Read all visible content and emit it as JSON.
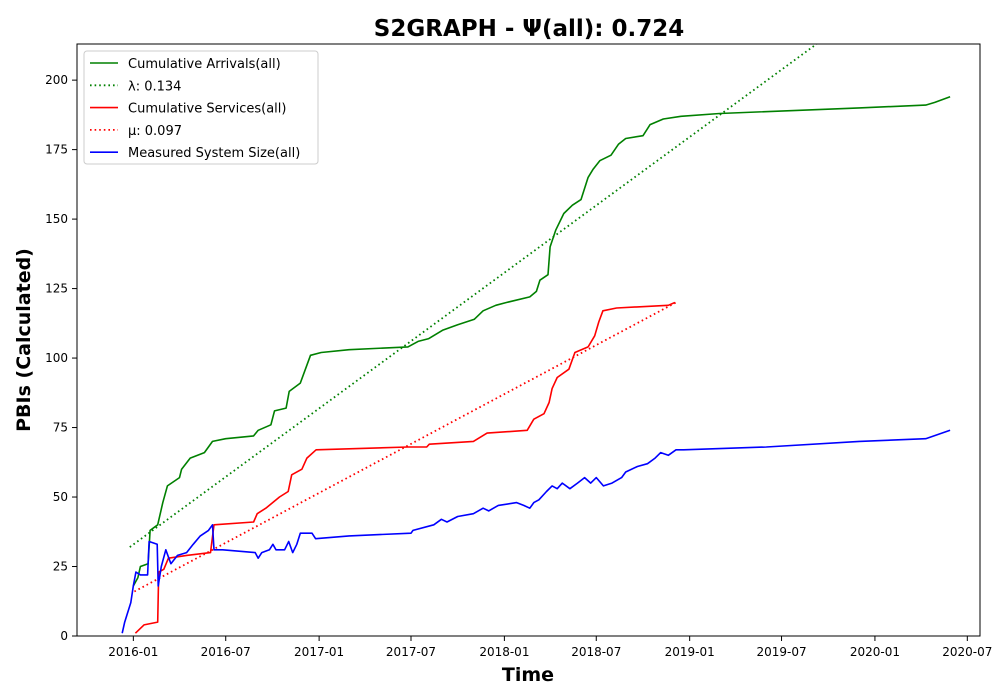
{
  "chart_data": {
    "type": "line",
    "title": "S2GRAPH -  Ψ(all): 0.724",
    "xlabel": "Time",
    "ylabel": "PBIs (Calculated)",
    "xlim": [
      "2015-09-12",
      "2020-07-26"
    ],
    "ylim": [
      0,
      213
    ],
    "x_ticks": [
      "2016-01",
      "2016-07",
      "2017-01",
      "2017-07",
      "2018-01",
      "2018-07",
      "2019-01",
      "2019-07",
      "2020-01",
      "2020-07"
    ],
    "y_ticks": [
      0,
      25,
      50,
      75,
      100,
      125,
      150,
      175,
      200
    ],
    "grid": false,
    "legend_position": "top-left",
    "series": [
      {
        "name": "Cumulative Arrivals(all)",
        "color": "#008000",
        "style": "solid",
        "points": [
          [
            "2016-01-01",
            18
          ],
          [
            "2016-01-10",
            21
          ],
          [
            "2016-01-15",
            25
          ],
          [
            "2016-01-30",
            26
          ],
          [
            "2016-02-03",
            38
          ],
          [
            "2016-02-18",
            40
          ],
          [
            "2016-02-28",
            48
          ],
          [
            "2016-03-08",
            54
          ],
          [
            "2016-04-01",
            57
          ],
          [
            "2016-04-05",
            60
          ],
          [
            "2016-04-22",
            64
          ],
          [
            "2016-05-20",
            66
          ],
          [
            "2016-06-05",
            70
          ],
          [
            "2016-07-01",
            71
          ],
          [
            "2016-08-25",
            72
          ],
          [
            "2016-09-03",
            74
          ],
          [
            "2016-09-28",
            76
          ],
          [
            "2016-10-05",
            81
          ],
          [
            "2016-10-28",
            82
          ],
          [
            "2016-11-03",
            88
          ],
          [
            "2016-11-25",
            91
          ],
          [
            "2016-12-15",
            101
          ],
          [
            "2017-01-05",
            102
          ],
          [
            "2017-03-01",
            103
          ],
          [
            "2017-06-25",
            104
          ],
          [
            "2017-07-15",
            106
          ],
          [
            "2017-08-05",
            107
          ],
          [
            "2017-09-01",
            110
          ],
          [
            "2017-10-01",
            112
          ],
          [
            "2017-11-03",
            114
          ],
          [
            "2017-11-20",
            117
          ],
          [
            "2017-12-15",
            119
          ],
          [
            "2018-01-05",
            120
          ],
          [
            "2018-02-20",
            122
          ],
          [
            "2018-03-05",
            124
          ],
          [
            "2018-03-12",
            128
          ],
          [
            "2018-03-28",
            130
          ],
          [
            "2018-04-01",
            140
          ],
          [
            "2018-04-12",
            146
          ],
          [
            "2018-04-28",
            152
          ],
          [
            "2018-05-15",
            155
          ],
          [
            "2018-06-01",
            157
          ],
          [
            "2018-06-15",
            165
          ],
          [
            "2018-06-25",
            168
          ],
          [
            "2018-07-08",
            171
          ],
          [
            "2018-07-30",
            173
          ],
          [
            "2018-08-14",
            177
          ],
          [
            "2018-08-28",
            179
          ],
          [
            "2018-10-01",
            180
          ],
          [
            "2018-10-15",
            184
          ],
          [
            "2018-11-10",
            186
          ],
          [
            "2018-12-15",
            187
          ],
          [
            "2019-03-01",
            188
          ],
          [
            "2019-12-01",
            190
          ],
          [
            "2020-04-10",
            191
          ],
          [
            "2020-04-28",
            192
          ],
          [
            "2020-05-28",
            194
          ]
        ]
      },
      {
        "name": "λ: 0.134",
        "color": "#008000",
        "style": "dotted",
        "points": [
          [
            "2015-12-25",
            32
          ],
          [
            "2019-09-08",
            213
          ]
        ]
      },
      {
        "name": "Cumulative Services(all)",
        "color": "#ff0000",
        "style": "solid",
        "points": [
          [
            "2016-01-05",
            1
          ],
          [
            "2016-01-22",
            4
          ],
          [
            "2016-02-18",
            5
          ],
          [
            "2016-02-20",
            23
          ],
          [
            "2016-03-01",
            24
          ],
          [
            "2016-03-10",
            28
          ],
          [
            "2016-04-15",
            29
          ],
          [
            "2016-06-01",
            30
          ],
          [
            "2016-06-08",
            40
          ],
          [
            "2016-08-25",
            41
          ],
          [
            "2016-09-01",
            44
          ],
          [
            "2016-09-18",
            46
          ],
          [
            "2016-10-15",
            50
          ],
          [
            "2016-11-01",
            52
          ],
          [
            "2016-11-08",
            58
          ],
          [
            "2016-11-28",
            60
          ],
          [
            "2016-12-08",
            64
          ],
          [
            "2016-12-26",
            67
          ],
          [
            "2017-06-25",
            68
          ],
          [
            "2017-08-01",
            68
          ],
          [
            "2017-08-06",
            69
          ],
          [
            "2017-11-01",
            70
          ],
          [
            "2017-11-28",
            73
          ],
          [
            "2018-02-15",
            74
          ],
          [
            "2018-02-28",
            78
          ],
          [
            "2018-03-20",
            80
          ],
          [
            "2018-03-30",
            84
          ],
          [
            "2018-04-05",
            89
          ],
          [
            "2018-04-15",
            93
          ],
          [
            "2018-05-08",
            96
          ],
          [
            "2018-05-20",
            102
          ],
          [
            "2018-06-15",
            104
          ],
          [
            "2018-06-28",
            108
          ],
          [
            "2018-07-06",
            113
          ],
          [
            "2018-07-14",
            117
          ],
          [
            "2018-08-10",
            118
          ],
          [
            "2018-11-20",
            119
          ],
          [
            "2018-12-03",
            120
          ]
        ]
      },
      {
        "name": "μ: 0.097",
        "color": "#ff0000",
        "style": "dotted",
        "points": [
          [
            "2016-01-03",
            16
          ],
          [
            "2018-12-05",
            120
          ]
        ]
      },
      {
        "name": "Measured System Size(all)",
        "color": "#0000ff",
        "style": "solid",
        "points": [
          [
            "2015-12-10",
            1
          ],
          [
            "2015-12-15",
            5
          ],
          [
            "2015-12-20",
            8
          ],
          [
            "2015-12-27",
            12
          ],
          [
            "2016-01-01",
            18
          ],
          [
            "2016-01-06",
            23
          ],
          [
            "2016-01-15",
            22
          ],
          [
            "2016-01-29",
            22
          ],
          [
            "2016-02-01",
            34
          ],
          [
            "2016-02-17",
            33
          ],
          [
            "2016-02-19",
            18
          ],
          [
            "2016-02-25",
            25
          ],
          [
            "2016-03-05",
            31
          ],
          [
            "2016-03-15",
            26
          ],
          [
            "2016-03-28",
            29
          ],
          [
            "2016-04-15",
            30
          ],
          [
            "2016-04-28",
            33
          ],
          [
            "2016-05-12",
            36
          ],
          [
            "2016-05-28",
            38
          ],
          [
            "2016-06-05",
            40
          ],
          [
            "2016-06-08",
            31
          ],
          [
            "2016-06-25",
            31
          ],
          [
            "2016-08-28",
            30
          ],
          [
            "2016-09-03",
            28
          ],
          [
            "2016-09-10",
            30
          ],
          [
            "2016-09-25",
            31
          ],
          [
            "2016-10-02",
            33
          ],
          [
            "2016-10-08",
            31
          ],
          [
            "2016-10-25",
            31
          ],
          [
            "2016-11-02",
            34
          ],
          [
            "2016-11-10",
            30
          ],
          [
            "2016-11-18",
            33
          ],
          [
            "2016-11-25",
            37
          ],
          [
            "2016-12-18",
            37
          ],
          [
            "2016-12-25",
            35
          ],
          [
            "2017-03-01",
            36
          ],
          [
            "2017-07-01",
            37
          ],
          [
            "2017-07-05",
            38
          ],
          [
            "2017-08-15",
            40
          ],
          [
            "2017-08-30",
            42
          ],
          [
            "2017-09-10",
            41
          ],
          [
            "2017-10-01",
            43
          ],
          [
            "2017-11-01",
            44
          ],
          [
            "2017-11-20",
            46
          ],
          [
            "2017-12-01",
            45
          ],
          [
            "2017-12-20",
            47
          ],
          [
            "2018-01-25",
            48
          ],
          [
            "2018-02-08",
            47
          ],
          [
            "2018-02-20",
            46
          ],
          [
            "2018-02-28",
            48
          ],
          [
            "2018-03-10",
            49
          ],
          [
            "2018-03-25",
            52
          ],
          [
            "2018-04-05",
            54
          ],
          [
            "2018-04-15",
            53
          ],
          [
            "2018-04-25",
            55
          ],
          [
            "2018-05-10",
            53
          ],
          [
            "2018-05-25",
            55
          ],
          [
            "2018-06-08",
            57
          ],
          [
            "2018-06-20",
            55
          ],
          [
            "2018-07-01",
            57
          ],
          [
            "2018-07-15",
            54
          ],
          [
            "2018-08-01",
            55
          ],
          [
            "2018-08-20",
            57
          ],
          [
            "2018-08-28",
            59
          ],
          [
            "2018-09-20",
            61
          ],
          [
            "2018-10-10",
            62
          ],
          [
            "2018-10-25",
            64
          ],
          [
            "2018-11-05",
            66
          ],
          [
            "2018-11-20",
            65
          ],
          [
            "2018-12-05",
            67
          ],
          [
            "2018-12-20",
            67
          ],
          [
            "2019-06-01",
            68
          ],
          [
            "2019-12-01",
            70
          ],
          [
            "2020-04-10",
            71
          ],
          [
            "2020-05-28",
            74
          ]
        ]
      }
    ]
  }
}
